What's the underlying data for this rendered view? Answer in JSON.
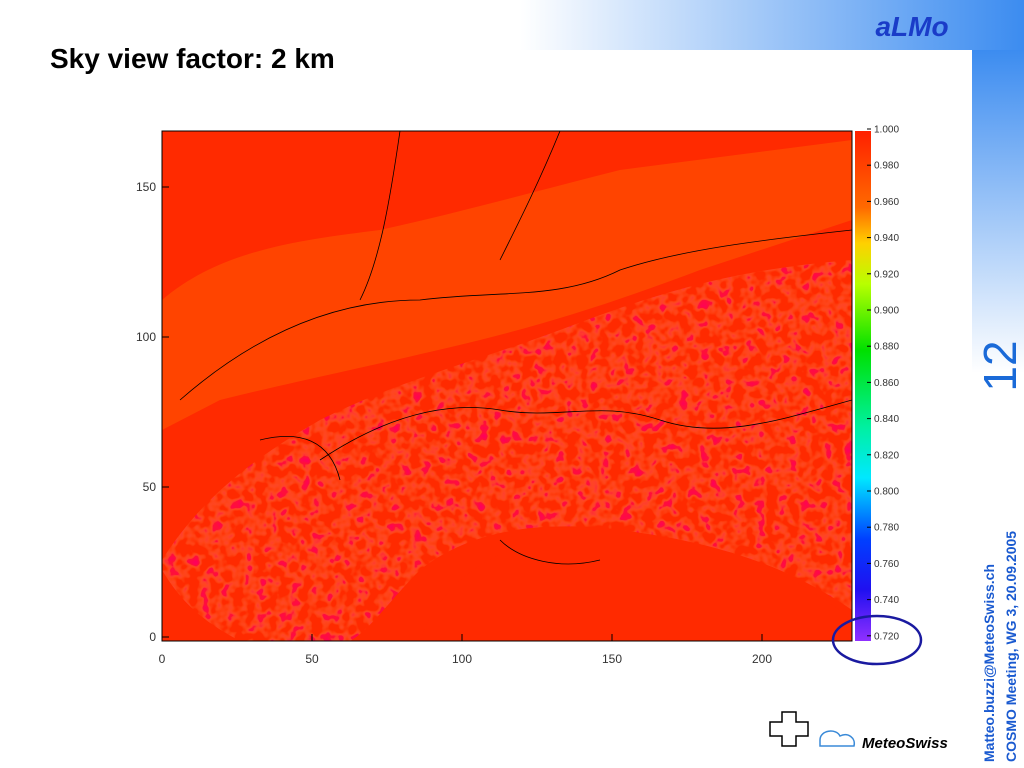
{
  "header": {
    "title": "Sky view factor: 2 km",
    "brand": "aLMo",
    "page_number": "12"
  },
  "plot": {
    "x_ticks": [
      "0",
      "50",
      "100",
      "150",
      "200"
    ],
    "y_ticks": [
      "0",
      "50",
      "100",
      "150"
    ],
    "colorbar_ticks": [
      "1.000",
      "0.980",
      "0.960",
      "0.940",
      "0.920",
      "0.900",
      "0.880",
      "0.860",
      "0.840",
      "0.820",
      "0.800",
      "0.780",
      "0.760",
      "0.740",
      "0.720"
    ]
  },
  "footer": {
    "email": "Matteo.buzzi@MeteoSwiss.ch",
    "meeting": "COSMO Meeting, WG 3, 20.09.2005",
    "logo": "MeteoSwiss"
  }
}
